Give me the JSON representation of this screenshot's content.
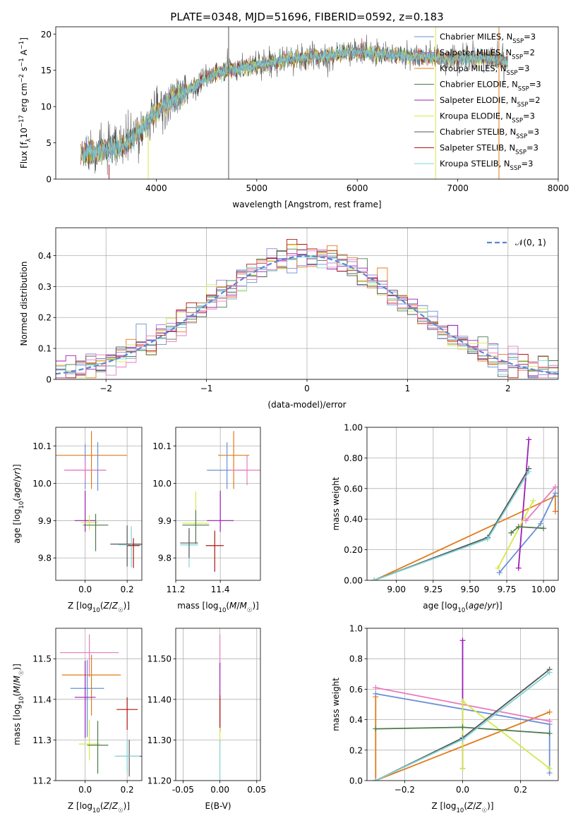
{
  "figure": {
    "title": "PLATE=0348, MJD=51696, FIBERID=0592, z=0.183"
  },
  "colors": {
    "Chabrier MILES": "#6b8fd6",
    "Salpeter MILES": "#9b7fd4",
    "Kroupa MILES": "#e07b1a",
    "Chabrier ELODIE": "#4a7a4a",
    "Salpeter ELODIE": "#9b1fb5",
    "Kroupa ELODIE": "#d4e84a",
    "Chabrier STELIB": "#555555",
    "Salpeter STELIB": "#b01515",
    "Kroupa STELIB": "#7fd4d4",
    "pink": "#e87bbf",
    "teal_fit": "#4aa0a0"
  },
  "legend_entries": [
    {
      "name": "Chabrier MILES",
      "nssp": "3"
    },
    {
      "name": "Salpeter MILES",
      "nssp": "2"
    },
    {
      "name": "Kroupa MILES",
      "nssp": "3"
    },
    {
      "name": "Chabrier ELODIE",
      "nssp": "3"
    },
    {
      "name": "Salpeter ELODIE",
      "nssp": "2"
    },
    {
      "name": "Kroupa ELODIE",
      "nssp": "3"
    },
    {
      "name": "Chabrier STELIB",
      "nssp": "3"
    },
    {
      "name": "Salpeter STELIB",
      "nssp": "3"
    },
    {
      "name": "Kroupa STELIB",
      "nssp": "3"
    }
  ],
  "chart_data": [
    {
      "id": "spectrum",
      "type": "line",
      "xlabel": "wavelength [Angstrom, rest frame]",
      "ylabel": "Flux [f",
      "xlim": [
        3000,
        8000
      ],
      "ylim": [
        0,
        21
      ],
      "xticks": [
        4000,
        5000,
        6000,
        7000,
        8000
      ],
      "yticks": [
        0,
        5,
        10,
        15,
        20
      ],
      "legend_loc": "upper-right",
      "continuum": {
        "x": [
          3250,
          3450,
          3650,
          3800,
          3950,
          4100,
          4300,
          4500,
          4700,
          4900,
          5100,
          5300,
          5500,
          5700,
          5900,
          6100,
          6300,
          6500,
          6700,
          6900,
          7100,
          7300,
          7500
        ],
        "y": [
          3.5,
          4.0,
          4.4,
          6.0,
          8.5,
          10.5,
          12.0,
          14.0,
          15.0,
          15.5,
          16.0,
          16.5,
          16.8,
          17.0,
          17.5,
          17.5,
          17.2,
          17.0,
          16.8,
          16.5,
          16.6,
          16.7,
          16.2
        ]
      },
      "spikes": [
        {
          "x": 3530,
          "y0": 0,
          "y1": 2,
          "series": "Salpeter STELIB"
        },
        {
          "x": 3920,
          "y0": 0,
          "y1": 6,
          "series": "Kroupa ELODIE"
        },
        {
          "x": 4720,
          "y0": 0,
          "y1": 21,
          "series": "Chabrier STELIB"
        },
        {
          "x": 6780,
          "y0": 0,
          "y1": 21,
          "series": "Kroupa ELODIE"
        },
        {
          "x": 7410,
          "y0": 0,
          "y1": 21,
          "series": "Kroupa MILES"
        }
      ]
    },
    {
      "id": "residuals",
      "type": "histogram",
      "xlabel": "(data-model)/error",
      "ylabel": "Normed distribution",
      "xlim": [
        -2.5,
        2.5
      ],
      "ylim": [
        0,
        0.49
      ],
      "xticks": [
        -2,
        -1,
        0,
        1,
        2
      ],
      "yticks": [
        0.0,
        0.1,
        0.2,
        0.3,
        0.4
      ],
      "legend": "$\\mathcal{N}(0,1)$",
      "legend_loc": "upper-right",
      "gaussian": {
        "mu": 0,
        "sigma": 1
      },
      "bin_width": 0.1
    },
    {
      "id": "age_vs_Z",
      "type": "scatter",
      "xlabel": "Z [log",
      "ylabel": "age  [log",
      "xlim": [
        -0.14,
        0.27
      ],
      "ylim": [
        9.74,
        10.15
      ],
      "xticks": [
        0.0,
        0.2
      ],
      "yticks": [
        9.8,
        9.9,
        10.0,
        10.1
      ],
      "points": [
        {
          "series": "Kroupa MILES",
          "x": 0.03,
          "y": 10.075,
          "xerr": 0.17,
          "yerr_lo": 0.09,
          "yerr_hi": 0.065
        },
        {
          "series": "Chabrier MILES",
          "x": 0.0,
          "y": 10.035,
          "xerr": 0.1,
          "yerr_lo": 0.05,
          "yerr_hi": 0.07
        },
        {
          "series": "pink",
          "x": 0.0,
          "y": 10.035,
          "xerr": 0.1,
          "yerr_lo": 0.03,
          "yerr_hi": 0.03
        },
        {
          "series": "Salpeter ELODIE",
          "x": 0.0,
          "y": 9.9,
          "xerr": 0.05,
          "yerr_lo": 0.03,
          "yerr_hi": 0.08
        },
        {
          "series": "Kroupa ELODIE",
          "x": 0.02,
          "y": 9.895,
          "xerr": 0.04,
          "yerr_lo": 0.02,
          "yerr_hi": 0.02
        },
        {
          "series": "Chabrier ELODIE",
          "x": 0.05,
          "y": 9.888,
          "xerr": 0.06,
          "yerr_lo": 0.07,
          "yerr_hi": 0.03
        },
        {
          "series": "Chabrier STELIB",
          "x": 0.2,
          "y": 9.837,
          "xerr": 0.08,
          "yerr_lo": 0.06,
          "yerr_hi": 0.05
        },
        {
          "series": "Kroupa STELIB",
          "x": 0.22,
          "y": 9.835,
          "xerr": 0.06,
          "yerr_lo": 0.06,
          "yerr_hi": 0.05
        },
        {
          "series": "Salpeter STELIB",
          "x": 0.23,
          "y": 9.833,
          "xerr": 0.03,
          "yerr_lo": 0.06,
          "yerr_hi": 0.02
        },
        {
          "series": "Chabrier MILES",
          "x": 0.06,
          "y": 10.03,
          "xerr": 0.0,
          "yerr_lo": 0.05,
          "yerr_hi": 0.08
        }
      ]
    },
    {
      "id": "age_vs_mass",
      "type": "scatter",
      "xlabel": "mass [log",
      "ylabel": "",
      "xlim": [
        11.2,
        11.58
      ],
      "ylim": [
        9.74,
        10.15
      ],
      "xticks": [
        11.2,
        11.4
      ],
      "yticks": [
        9.8,
        9.9,
        10.0,
        10.1
      ],
      "points": [
        {
          "series": "Kroupa MILES",
          "x": 11.46,
          "y": 10.075,
          "xerr": 0.07,
          "yerr_lo": 0.09,
          "yerr_hi": 0.065
        },
        {
          "series": "Chabrier MILES",
          "x": 11.43,
          "y": 10.035,
          "xerr": 0.09,
          "yerr_lo": 0.05,
          "yerr_hi": 0.075
        },
        {
          "series": "pink",
          "x": 11.52,
          "y": 10.035,
          "xerr": 0.08,
          "yerr_lo": 0.04,
          "yerr_hi": 0.04
        },
        {
          "series": "Salpeter ELODIE",
          "x": 11.4,
          "y": 9.9,
          "xerr": 0.06,
          "yerr_lo": 0.03,
          "yerr_hi": 0.08
        },
        {
          "series": "Kroupa ELODIE",
          "x": 11.29,
          "y": 9.893,
          "xerr": 0.06,
          "yerr_lo": 0.025,
          "yerr_hi": 0.085
        },
        {
          "series": "Chabrier ELODIE",
          "x": 11.29,
          "y": 9.888,
          "xerr": 0.06,
          "yerr_lo": 0.05,
          "yerr_hi": 0.04
        },
        {
          "series": "Kroupa STELIB",
          "x": 11.26,
          "y": 9.835,
          "xerr": 0.04,
          "yerr_lo": 0.06,
          "yerr_hi": 0.04
        },
        {
          "series": "Chabrier STELIB",
          "x": 11.26,
          "y": 9.84,
          "xerr": 0.04,
          "yerr_lo": 0.04,
          "yerr_hi": 0.04
        },
        {
          "series": "Salpeter STELIB",
          "x": 11.375,
          "y": 9.833,
          "xerr": 0.04,
          "yerr_lo": 0.07,
          "yerr_hi": 0.04
        }
      ]
    },
    {
      "id": "weight_vs_age",
      "type": "line",
      "xlabel": "age  [log",
      "ylabel": "mass weight",
      "xlim": [
        8.8,
        10.1
      ],
      "ylim": [
        0,
        1
      ],
      "xticks": [
        9.0,
        9.25,
        9.5,
        9.75,
        10.0
      ],
      "yticks": [
        0.0,
        0.2,
        0.4,
        0.6,
        0.8,
        1.0
      ],
      "series": [
        {
          "name": "Kroupa MILES",
          "x": [
            8.85,
            10.08,
            10.08
          ],
          "y": [
            0.0,
            0.55,
            0.45
          ]
        },
        {
          "name": "Chabrier MILES",
          "x": [
            9.7,
            9.98,
            10.08
          ],
          "y": [
            0.05,
            0.37,
            0.57
          ]
        },
        {
          "name": "pink",
          "x": [
            9.88,
            10.08
          ],
          "y": [
            0.39,
            0.61
          ]
        },
        {
          "name": "Salpeter ELODIE",
          "x": [
            9.83,
            9.9
          ],
          "y": [
            0.08,
            0.92
          ]
        },
        {
          "name": "Kroupa ELODIE",
          "x": [
            9.69,
            9.93
          ],
          "y": [
            0.08,
            0.52
          ]
        },
        {
          "name": "Chabrier ELODIE",
          "x": [
            9.78,
            9.83,
            10.0
          ],
          "y": [
            0.31,
            0.35,
            0.34
          ]
        },
        {
          "name": "Chabrier STELIB",
          "x": [
            8.85,
            9.62,
            9.9
          ],
          "y": [
            0.0,
            0.28,
            0.73
          ]
        },
        {
          "name": "Kroupa STELIB",
          "x": [
            8.85,
            9.62,
            9.9
          ],
          "y": [
            0.0,
            0.27,
            0.71
          ]
        }
      ]
    },
    {
      "id": "mass_vs_Z",
      "type": "scatter",
      "xlabel": "Z [log",
      "ylabel": "mass [log",
      "xlim": [
        -0.14,
        0.27
      ],
      "ylim": [
        11.2,
        11.575
      ],
      "xticks": [
        0.0,
        0.2
      ],
      "yticks": [
        11.2,
        11.3,
        11.4,
        11.5
      ],
      "points": [
        {
          "series": "pink",
          "x": 0.02,
          "y": 11.515,
          "xerr": 0.14,
          "yerr_lo": 0.06,
          "yerr_hi": 0.045
        },
        {
          "series": "Kroupa MILES",
          "x": 0.03,
          "y": 11.46,
          "xerr": 0.14,
          "yerr_lo": 0.1,
          "yerr_hi": 0.05
        },
        {
          "series": "Chabrier MILES",
          "x": 0.01,
          "y": 11.427,
          "xerr": 0.08,
          "yerr_lo": 0.12,
          "yerr_hi": 0.07
        },
        {
          "series": "Salpeter ELODIE",
          "x": 0.0,
          "y": 11.405,
          "xerr": 0.05,
          "yerr_lo": 0.1,
          "yerr_hi": 0.09
        },
        {
          "series": "Salpeter STELIB",
          "x": 0.2,
          "y": 11.375,
          "xerr": 0.05,
          "yerr_lo": 0.05,
          "yerr_hi": 0.03
        },
        {
          "series": "Kroupa ELODIE",
          "x": 0.02,
          "y": 11.29,
          "xerr": 0.05,
          "yerr_lo": 0.04,
          "yerr_hi": 0.06
        },
        {
          "series": "Chabrier ELODIE",
          "x": 0.06,
          "y": 11.287,
          "xerr": 0.05,
          "yerr_lo": 0.07,
          "yerr_hi": 0.06
        },
        {
          "series": "Chabrier STELIB",
          "x": 0.21,
          "y": 11.26,
          "xerr": 0.06,
          "yerr_lo": 0.05,
          "yerr_hi": 0.04
        },
        {
          "series": "Kroupa STELIB",
          "x": 0.2,
          "y": 11.26,
          "xerr": 0.06,
          "yerr_lo": 0.04,
          "yerr_hi": 0.04
        }
      ]
    },
    {
      "id": "mass_vs_ebv",
      "type": "scatter",
      "xlabel": "E(B-V)",
      "ylabel": "",
      "xlim": [
        -0.06,
        0.055
      ],
      "ylim": [
        11.2,
        11.575
      ],
      "xticks": [
        -0.05,
        0.0,
        0.05
      ],
      "yticks": [
        11.2,
        11.3,
        11.4,
        11.5
      ],
      "points": [
        {
          "series": "pink",
          "x": 0.0,
          "y": 11.5,
          "xerr": 0.0,
          "yerr_lo": 0.02,
          "yerr_hi": 0.06
        },
        {
          "series": "Salpeter ELODIE",
          "x": 0.0,
          "y": 11.4,
          "xerr": 0.0,
          "yerr_lo": 0.08,
          "yerr_hi": 0.09
        },
        {
          "series": "Salpeter STELIB",
          "x": 0.0,
          "y": 11.37,
          "xerr": 0.0,
          "yerr_lo": 0.05,
          "yerr_hi": 0.04
        },
        {
          "series": "Kroupa ELODIE",
          "x": 0.0,
          "y": 11.3,
          "xerr": 0.0,
          "yerr_lo": 0.02,
          "yerr_hi": 0.03
        },
        {
          "series": "Kroupa STELIB",
          "x": 0.0,
          "y": 11.25,
          "xerr": 0.0,
          "yerr_lo": 0.05,
          "yerr_hi": 0.05
        }
      ]
    },
    {
      "id": "weight_vs_Z",
      "type": "line",
      "xlabel": "Z [log",
      "ylabel": "mass weight",
      "xlim": [
        -0.33,
        0.33
      ],
      "ylim": [
        0,
        1
      ],
      "xticks": [
        -0.2,
        0.0,
        0.2
      ],
      "yticks": [
        0.0,
        0.2,
        0.4,
        0.6,
        0.8,
        1.0
      ],
      "series": [
        {
          "name": "Kroupa MILES",
          "x": [
            -0.3,
            -0.3,
            0.3
          ],
          "y": [
            0.55,
            0.0,
            0.45
          ]
        },
        {
          "name": "Chabrier MILES",
          "x": [
            -0.3,
            0.3,
            0.3
          ],
          "y": [
            0.57,
            0.37,
            0.05
          ]
        },
        {
          "name": "pink",
          "x": [
            -0.3,
            0.3
          ],
          "y": [
            0.61,
            0.39
          ]
        },
        {
          "name": "Salpeter ELODIE",
          "x": [
            0.0,
            0.0
          ],
          "y": [
            0.08,
            0.92
          ]
        },
        {
          "name": "Kroupa ELODIE",
          "x": [
            0.0,
            0.0,
            0.3
          ],
          "y": [
            0.08,
            0.52,
            0.08
          ]
        },
        {
          "name": "Chabrier ELODIE",
          "x": [
            -0.3,
            0.0,
            0.3
          ],
          "y": [
            0.34,
            0.35,
            0.31
          ]
        },
        {
          "name": "Chabrier STELIB",
          "x": [
            -0.3,
            0.0,
            0.3
          ],
          "y": [
            0.0,
            0.28,
            0.73
          ]
        },
        {
          "name": "Kroupa STELIB",
          "x": [
            -0.3,
            0.0,
            0.3
          ],
          "y": [
            0.0,
            0.27,
            0.71
          ]
        }
      ]
    }
  ]
}
